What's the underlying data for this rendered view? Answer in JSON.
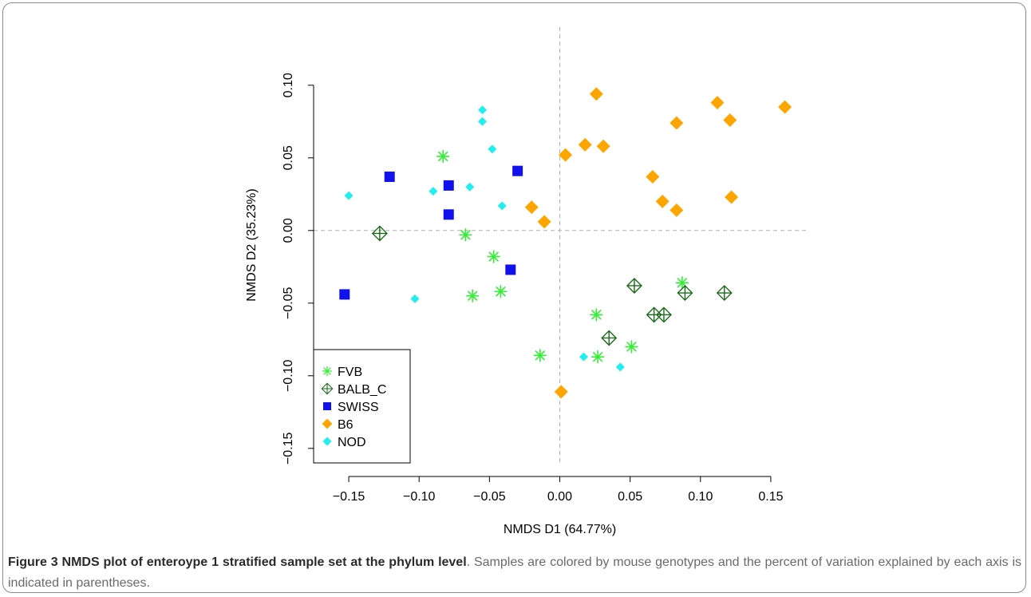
{
  "chart_data": {
    "type": "scatter",
    "xlabel": "NMDS D1 (64.77%)",
    "ylabel": "NMDS D2 (35.23%)",
    "xlim": [
      -0.175,
      0.175
    ],
    "ylim": [
      -0.16,
      0.14
    ],
    "xticks": [
      -0.15,
      -0.1,
      -0.05,
      0.0,
      0.05,
      0.1,
      0.15
    ],
    "xtick_labels": [
      "−0.15",
      "−0.10",
      "−0.05",
      "0.00",
      "0.05",
      "0.10",
      "0.15"
    ],
    "yticks": [
      -0.15,
      -0.1,
      -0.05,
      0.0,
      0.05,
      0.1
    ],
    "ytick_labels": [
      "−0.15",
      "−0.10",
      "−0.05",
      "0.00",
      "0.05",
      "0.10"
    ],
    "reference_lines": {
      "x": 0,
      "y": 0
    },
    "legend_position": "bottom-left",
    "series": [
      {
        "name": "FVB",
        "color": "#33ee33",
        "marker": "asterisk",
        "points": [
          [
            -0.083,
            0.051
          ],
          [
            -0.067,
            -0.003
          ],
          [
            -0.047,
            -0.018
          ],
          [
            -0.062,
            -0.045
          ],
          [
            -0.042,
            -0.042
          ],
          [
            -0.014,
            -0.086
          ],
          [
            0.026,
            -0.058
          ],
          [
            0.027,
            -0.087
          ],
          [
            0.051,
            -0.08
          ],
          [
            0.087,
            -0.036
          ]
        ]
      },
      {
        "name": "BALB_C",
        "color": "#1a6b1a",
        "marker": "diamond-plus",
        "points": [
          [
            -0.128,
            -0.002
          ],
          [
            0.053,
            -0.038
          ],
          [
            0.035,
            -0.074
          ],
          [
            0.067,
            -0.058
          ],
          [
            0.074,
            -0.058
          ],
          [
            0.089,
            -0.043
          ],
          [
            0.117,
            -0.043
          ]
        ]
      },
      {
        "name": "SWISS",
        "color": "#1111ee",
        "marker": "square",
        "points": [
          [
            -0.121,
            0.037
          ],
          [
            -0.079,
            0.031
          ],
          [
            -0.079,
            0.011
          ],
          [
            -0.03,
            0.041
          ],
          [
            -0.035,
            -0.027
          ],
          [
            -0.153,
            -0.044
          ]
        ]
      },
      {
        "name": "B6",
        "color": "#ffa500",
        "marker": "diamond",
        "points": [
          [
            0.026,
            0.094
          ],
          [
            0.112,
            0.088
          ],
          [
            0.16,
            0.085
          ],
          [
            0.121,
            0.076
          ],
          [
            0.083,
            0.074
          ],
          [
            0.018,
            0.059
          ],
          [
            0.031,
            0.058
          ],
          [
            0.004,
            0.052
          ],
          [
            0.066,
            0.037
          ],
          [
            0.073,
            0.02
          ],
          [
            0.083,
            0.014
          ],
          [
            0.122,
            0.023
          ],
          [
            -0.02,
            0.016
          ],
          [
            -0.011,
            0.006
          ],
          [
            0.001,
            -0.111
          ]
        ]
      },
      {
        "name": "NOD",
        "color": "#22eeee",
        "marker": "small-diamond",
        "points": [
          [
            -0.055,
            0.083
          ],
          [
            -0.055,
            0.075
          ],
          [
            -0.048,
            0.056
          ],
          [
            -0.15,
            0.024
          ],
          [
            -0.09,
            0.027
          ],
          [
            -0.064,
            0.03
          ],
          [
            -0.041,
            0.017
          ],
          [
            -0.103,
            -0.047
          ],
          [
            0.017,
            -0.087
          ],
          [
            0.043,
            -0.094
          ]
        ]
      }
    ]
  },
  "caption": {
    "label": "Figure 3 NMDS plot of enteroype 1 stratified sample set at the phylum level",
    "text": ". Samples are colored by mouse genotypes and the percent of variation explained by each axis is indicated in parentheses."
  }
}
